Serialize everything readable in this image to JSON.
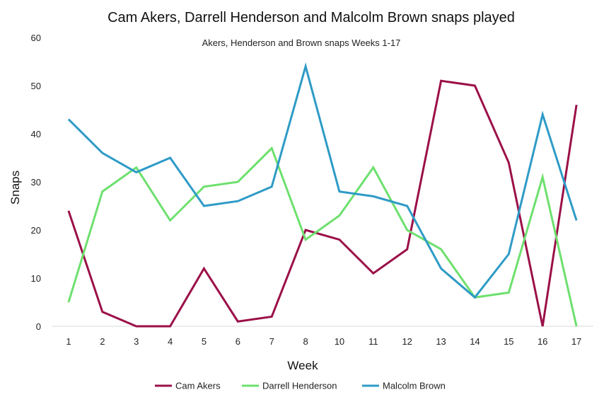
{
  "chart_data": {
    "type": "line",
    "title": "Cam Akers, Darrell Henderson and Malcolm Brown snaps played",
    "subtitle": "Akers, Henderson and Brown snaps Weeks 1-17",
    "xlabel": "Week",
    "ylabel": "Snaps",
    "ylim": [
      0,
      60
    ],
    "yticks": [
      0,
      10,
      20,
      30,
      40,
      50,
      60
    ],
    "grid": false,
    "legend_position": "bottom",
    "categories": [
      "1",
      "2",
      "3",
      "4",
      "5",
      "6",
      "7",
      "8",
      "10",
      "11",
      "12",
      "13",
      "14",
      "15",
      "16",
      "17"
    ],
    "series": [
      {
        "name": "Cam Akers",
        "color": "#9b1048",
        "values": [
          24,
          3,
          0,
          0,
          12,
          1,
          2,
          20,
          18,
          11,
          16,
          51,
          50,
          34,
          0,
          46
        ]
      },
      {
        "name": "Darrell Henderson",
        "color": "#6ee06e",
        "values": [
          5,
          28,
          33,
          22,
          29,
          30,
          37,
          18,
          23,
          33,
          20,
          16,
          6,
          7,
          31,
          0
        ]
      },
      {
        "name": "Malcolm Brown",
        "color": "#2e9bc6",
        "values": [
          43,
          36,
          32,
          35,
          25,
          26,
          29,
          54,
          28,
          27,
          25,
          12,
          6,
          15,
          44,
          22
        ]
      }
    ]
  }
}
